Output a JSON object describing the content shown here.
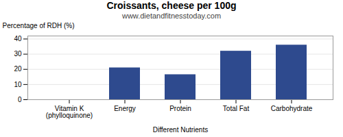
{
  "chart_data": {
    "type": "bar",
    "title": "Croissants, cheese per 100g",
    "subtitle": "www.dietandfitnesstoday.com",
    "xlabel": "Different Nutrients",
    "ylabel": "Percentage of RDH (%)",
    "categories": [
      "Vitamin K (phylloquinone)",
      "Energy",
      "Protein",
      "Total Fat",
      "Carbohydrate"
    ],
    "values": [
      0,
      21,
      16.5,
      32,
      36
    ],
    "color": "#2e4a8e",
    "ylim": [
      0,
      42
    ],
    "yticks": [
      0,
      10,
      20,
      30,
      40
    ],
    "grid": true
  }
}
